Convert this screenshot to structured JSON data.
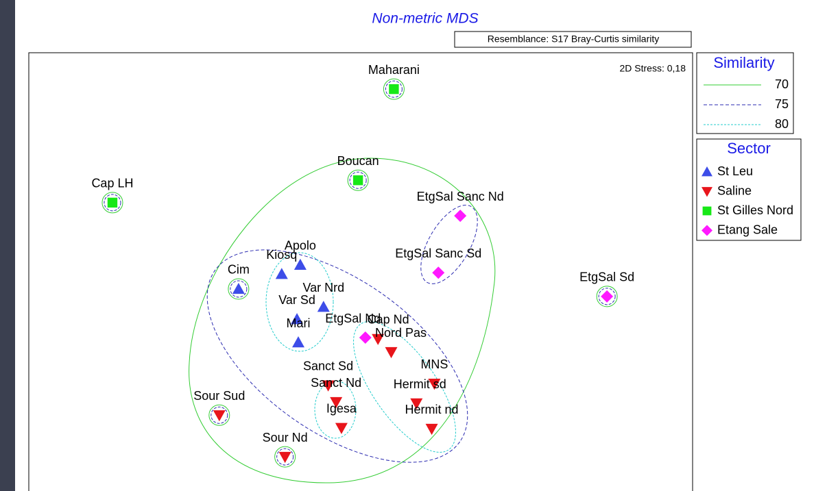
{
  "chart_data": {
    "type": "scatter",
    "title": "Non-metric MDS",
    "subtitle": "Resemblance: S17 Bray-Curtis similarity",
    "annotation": "2D Stress: 0,18",
    "xlim": [
      0,
      100
    ],
    "ylim": [
      0,
      100
    ],
    "similarity_title": "Similarity",
    "similarity_levels": [
      {
        "value": 70,
        "color": "#33cc33",
        "dash": "none"
      },
      {
        "value": 75,
        "color": "#2a2ab0",
        "dash": "5 3"
      },
      {
        "value": 80,
        "color": "#22cccc",
        "dash": "3 2"
      }
    ],
    "legend_title": "Sector",
    "series": [
      {
        "name": "St Leu",
        "color": "#3d4de8",
        "marker": "triangle-up",
        "labels": [
          "Cim",
          "Kiosq",
          "Apolo",
          "Var Nrd",
          "Var Sd",
          "Mari"
        ],
        "x": [
          31.6,
          38.1,
          40.9,
          44.4,
          40.4,
          40.6
        ],
        "y": [
          46.1,
          49.5,
          51.6,
          42.0,
          39.2,
          33.9
        ]
      },
      {
        "name": "Saline",
        "color": "#e8151b",
        "marker": "triangle-down",
        "labels": [
          "Cap Nd",
          "Nord Pas",
          "MNS",
          "Hermit sd",
          "Hermit nd",
          "Sanct Sd",
          "Sanct Nd",
          "Igesa",
          "Sour Sud",
          "Sour Nd"
        ],
        "x": [
          52.6,
          54.6,
          61.1,
          58.4,
          60.7,
          45.1,
          46.3,
          47.1,
          28.7,
          38.6
        ],
        "y": [
          34.7,
          31.7,
          24.5,
          20.0,
          14.2,
          24.1,
          20.3,
          14.4,
          17.3,
          7.8
        ]
      },
      {
        "name": "St Gilles Nord",
        "color": "#17e817",
        "marker": "square",
        "labels": [
          "Maharani",
          "Boucan",
          "Cap LH"
        ],
        "x": [
          55.0,
          49.6,
          12.6
        ],
        "y": [
          91.7,
          70.9,
          65.8
        ]
      },
      {
        "name": "Etang Sale",
        "color": "#ff19ff",
        "marker": "diamond",
        "labels": [
          "EtgSal Sanc Nd",
          "EtgSal Sanc Sd",
          "EtgSal Sd",
          "EtgSal Nd"
        ],
        "x": [
          65.0,
          61.7,
          87.1,
          50.7
        ],
        "y": [
          62.8,
          49.8,
          44.4,
          35.0
        ]
      }
    ]
  }
}
